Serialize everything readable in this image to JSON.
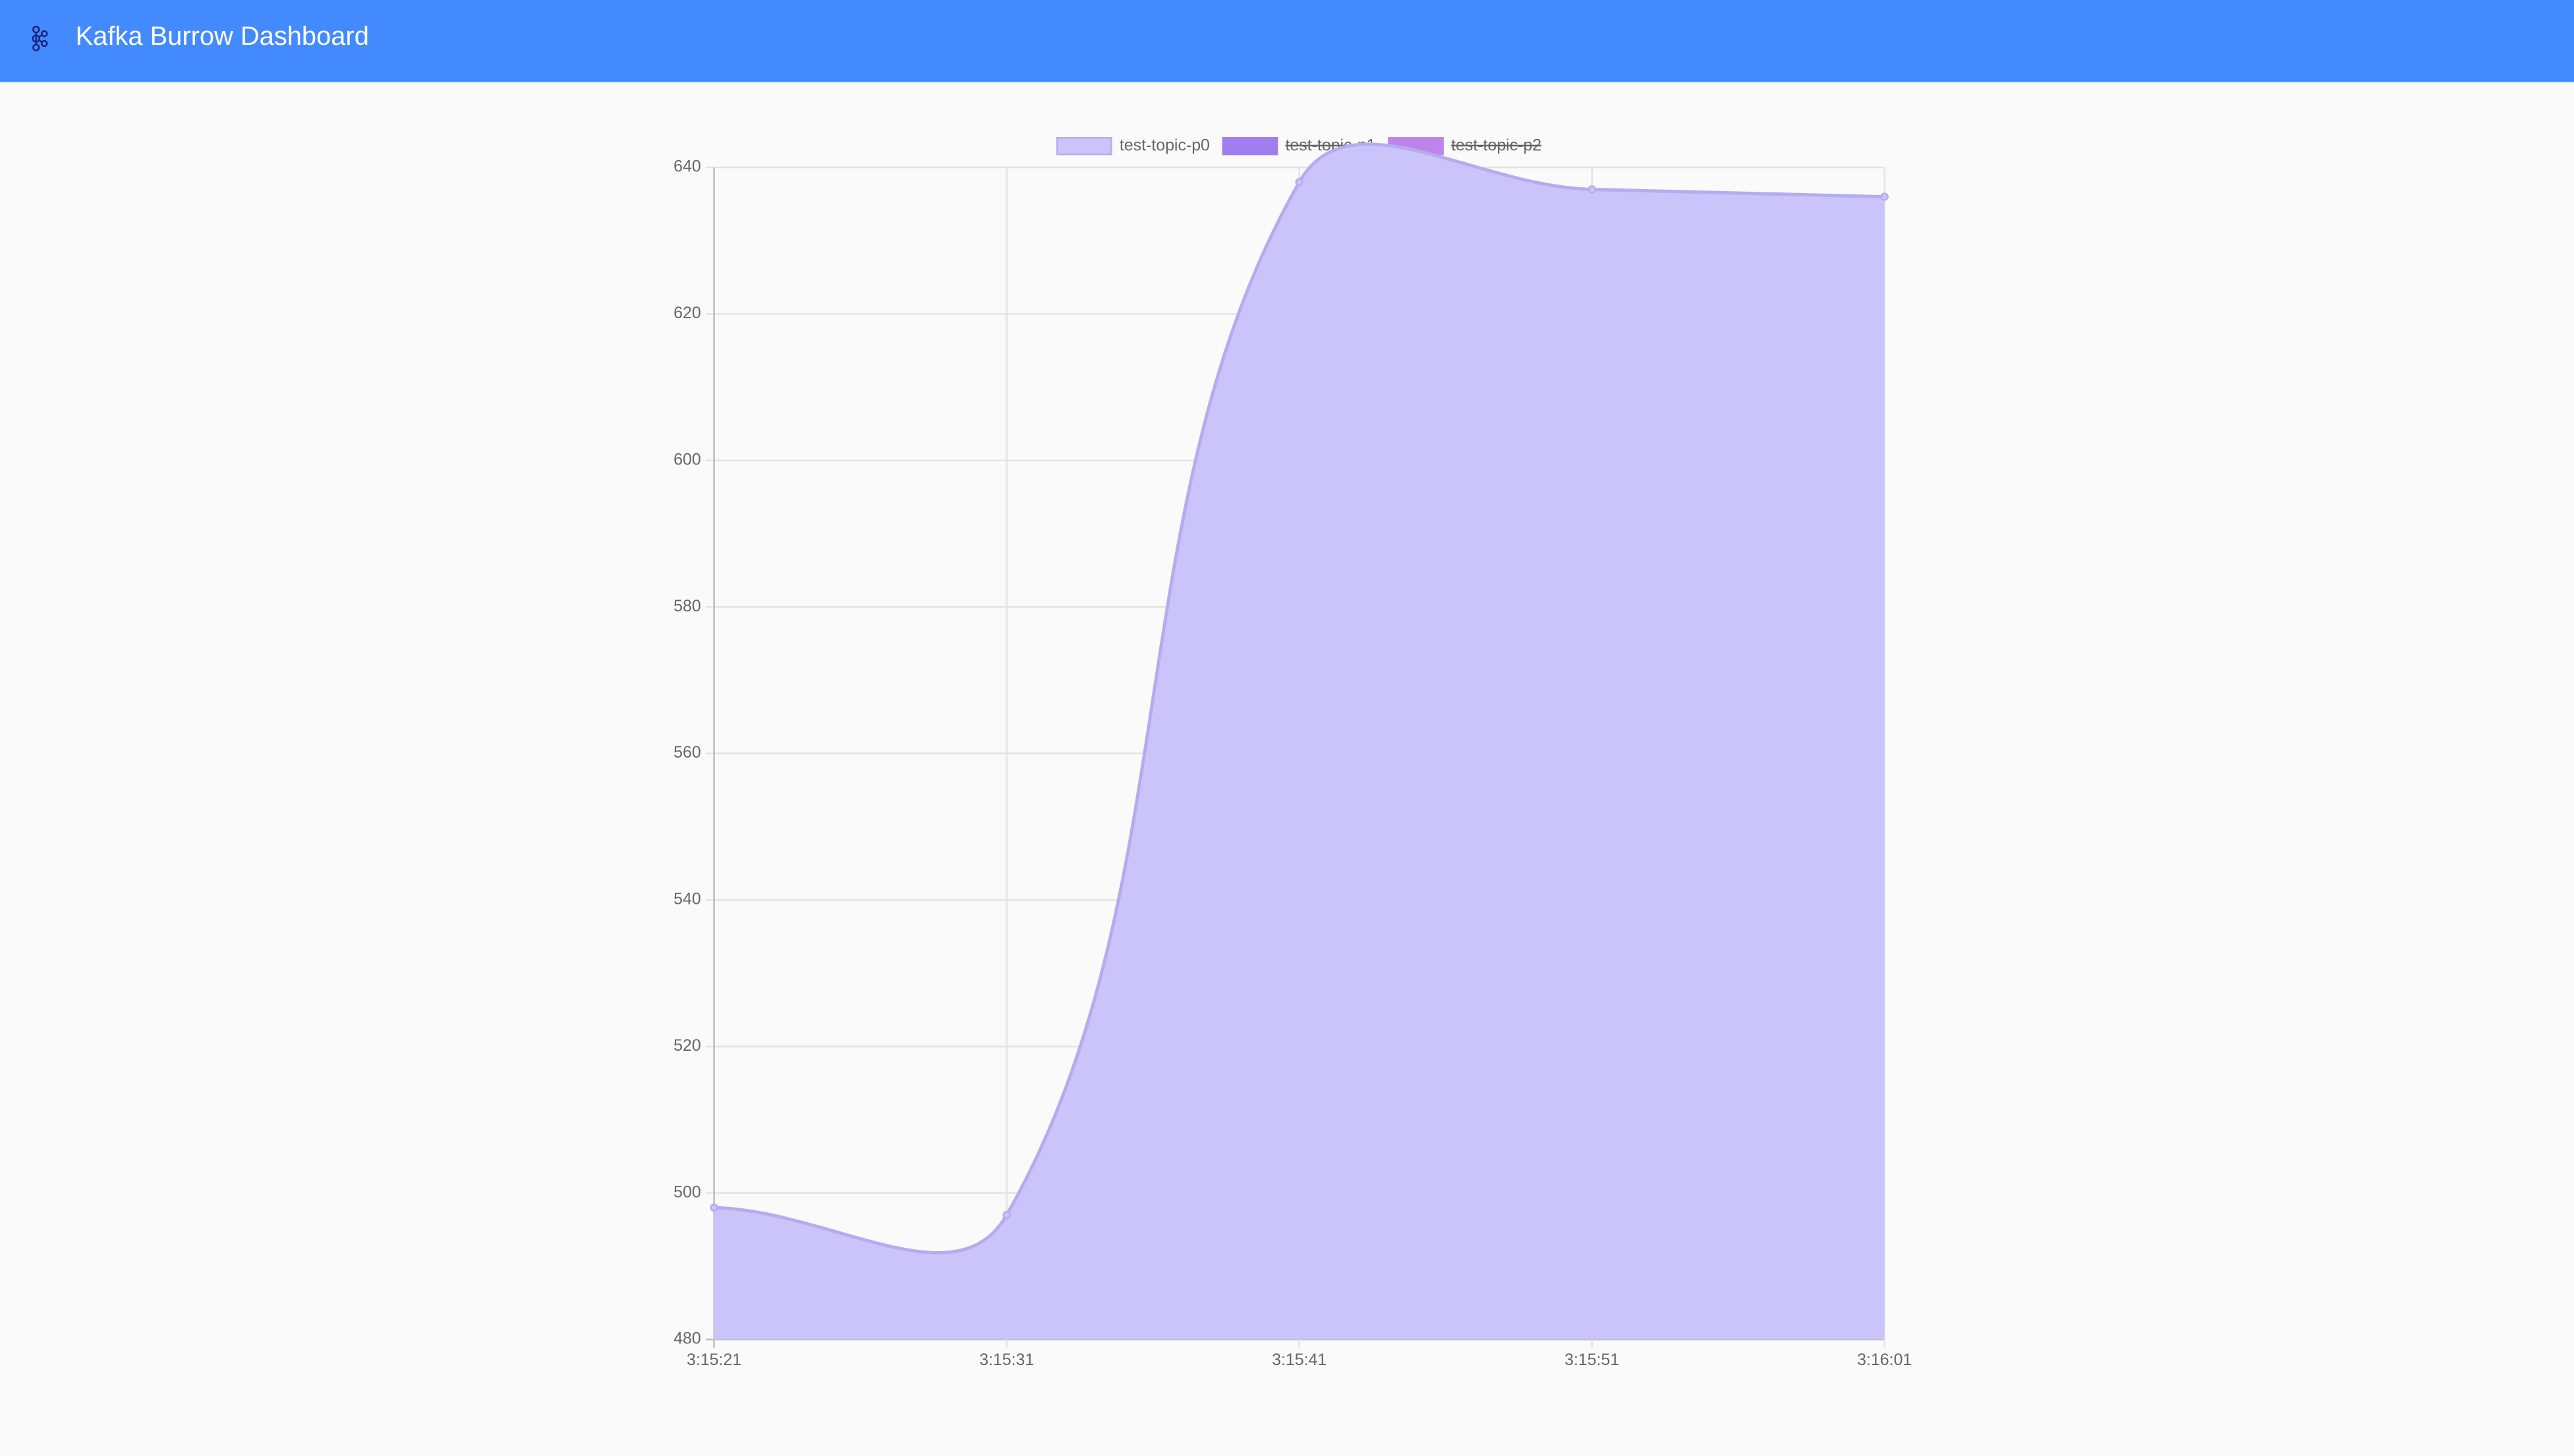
{
  "header": {
    "title": "Kafka Burrow Dashboard"
  },
  "chart_data": {
    "type": "line",
    "area": true,
    "x": [
      "3:15:21",
      "3:15:31",
      "3:15:41",
      "3:15:51",
      "3:16:01"
    ],
    "series": [
      {
        "name": "test-topic-p0",
        "color": "#cbc4fb",
        "values": [
          498,
          497,
          638,
          637,
          636
        ]
      },
      {
        "name": "test-topic-p1",
        "color": "#a07ef0",
        "hidden": true
      },
      {
        "name": "test-topic-p2",
        "color": "#c083ec",
        "hidden": true
      }
    ],
    "ylim": [
      480,
      640
    ],
    "yticks": [
      480,
      500,
      520,
      540,
      560,
      580,
      600,
      620,
      640
    ],
    "grid": true
  }
}
